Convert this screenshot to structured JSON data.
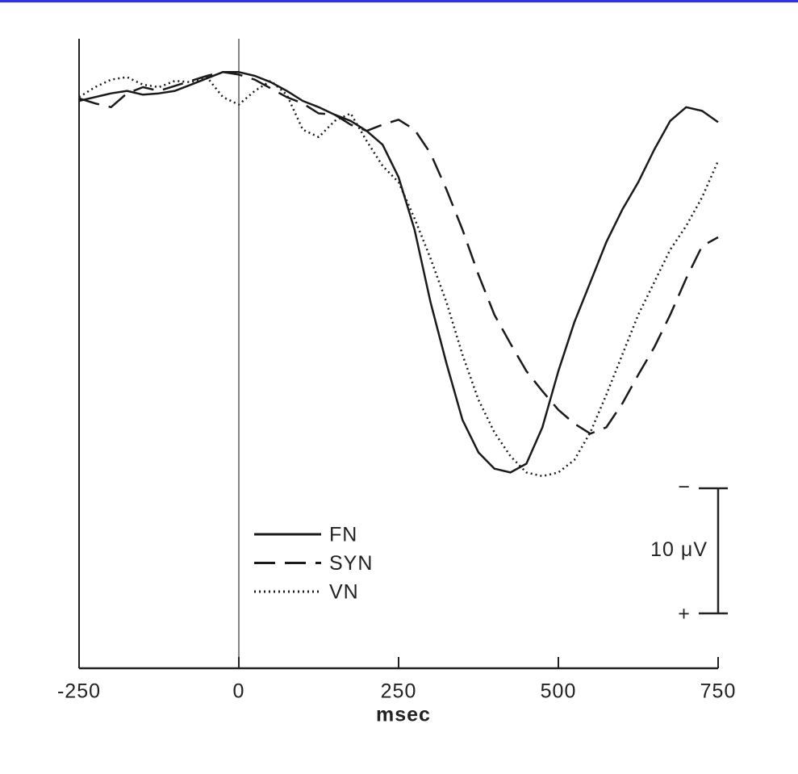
{
  "chart_data": {
    "type": "line",
    "x_label": "msec",
    "x": [
      -250,
      -225,
      -200,
      -175,
      -150,
      -125,
      -100,
      -75,
      -50,
      -25,
      0,
      25,
      50,
      75,
      100,
      125,
      150,
      175,
      200,
      225,
      250,
      275,
      300,
      325,
      350,
      375,
      400,
      425,
      450,
      475,
      500,
      525,
      550,
      575,
      600,
      625,
      650,
      675,
      700,
      725,
      750
    ],
    "series": [
      {
        "name": "FN",
        "color": "#1a1a1a",
        "dash": "solid",
        "values": [
          0,
          -0.3,
          -0.6,
          -0.8,
          -0.5,
          -0.6,
          -0.8,
          -1.3,
          -1.8,
          -2.3,
          -2.3,
          -2.0,
          -1.5,
          -0.8,
          0,
          0.5,
          1.1,
          1.6,
          2.4,
          3.5,
          6.1,
          10.3,
          16.1,
          21.0,
          25.5,
          28.1,
          29.4,
          29.7,
          29.0,
          26.1,
          21.6,
          17.7,
          14.5,
          11.3,
          8.7,
          6.5,
          3.9,
          1.6,
          0.5,
          0.8,
          1.7
        ]
      },
      {
        "name": "SYN",
        "color": "#1a1a1a",
        "dash": "dashed",
        "values": [
          -0.2,
          0.2,
          0.5,
          -0.6,
          -1.1,
          -0.8,
          -1.2,
          -1.6,
          -2.0,
          -2.3,
          -2.1,
          -1.7,
          -1.0,
          -0.3,
          0.2,
          1.0,
          1.1,
          1.9,
          2.4,
          1.9,
          1.5,
          2.3,
          4.2,
          7.1,
          10.3,
          13.9,
          17.1,
          19.4,
          21.6,
          23.2,
          24.7,
          25.8,
          26.6,
          26.1,
          24.2,
          21.9,
          19.7,
          17.1,
          14.2,
          11.6,
          10.9
        ]
      },
      {
        "name": "VN",
        "color": "#1a1a1a",
        "dash": "dotted",
        "values": [
          -0.3,
          -1.1,
          -1.7,
          -1.9,
          -1.3,
          -1.1,
          -1.6,
          -1.5,
          -1.9,
          -0.3,
          0.3,
          -0.8,
          -1.6,
          -0.5,
          2.3,
          2.9,
          1.6,
          1.0,
          3.2,
          5.2,
          6.5,
          9.4,
          12.6,
          16.1,
          20.3,
          23.9,
          26.5,
          28.4,
          29.7,
          30.0,
          29.7,
          28.7,
          26.5,
          23.5,
          20.3,
          17.1,
          14.5,
          11.9,
          10.0,
          7.7,
          4.8
        ]
      }
    ],
    "xlim": [
      -250,
      750
    ],
    "xticks": [
      -250,
      0,
      250,
      500,
      750
    ],
    "ylim": [
      -5,
      45
    ],
    "y_inverted": true,
    "vline": 0,
    "scale_bar": {
      "value": 10,
      "label": "10 μV",
      "top_label": "−",
      "bottom_label": "+"
    }
  }
}
